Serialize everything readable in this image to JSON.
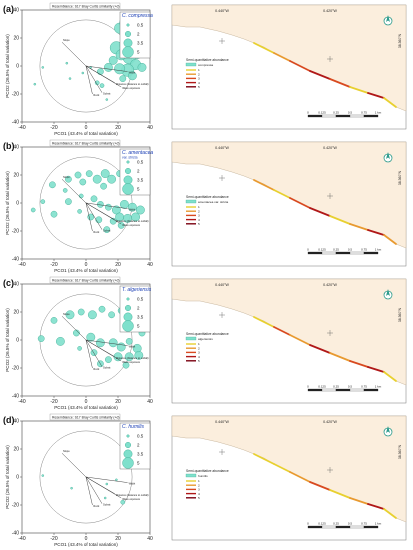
{
  "figure": {
    "panels": [
      {
        "letter": "(a)",
        "species": "C. compressa",
        "species_sub": "",
        "pco_title": "Resemblance: S17 Bray Curtis similarity (+d)",
        "map_legend_entry": "compressa",
        "bubble_color": "#7fe0cc",
        "bubbles": [
          [
            21,
            27,
            5
          ],
          [
            25,
            31,
            6
          ],
          [
            30,
            26,
            5
          ],
          [
            34,
            21,
            7
          ],
          [
            28,
            19,
            6
          ],
          [
            24,
            15,
            5
          ],
          [
            19,
            13,
            6
          ],
          [
            36,
            14,
            6
          ],
          [
            32,
            9,
            5
          ],
          [
            27,
            6,
            6
          ],
          [
            22,
            8,
            5
          ],
          [
            17,
            4,
            4
          ],
          [
            31,
            1,
            5
          ],
          [
            26,
            -3,
            6
          ],
          [
            21,
            -2,
            5
          ],
          [
            14,
            -1,
            4
          ],
          [
            9,
            -4,
            3
          ],
          [
            29,
            -7,
            4
          ],
          [
            23,
            -9,
            3
          ],
          [
            35,
            -1,
            4
          ],
          [
            7,
            -12,
            2
          ],
          [
            10,
            -14,
            2
          ],
          [
            3,
            -1,
            1
          ],
          [
            -10,
            -9,
            1
          ],
          [
            -27,
            -1,
            1
          ],
          [
            -32,
            -13,
            1
          ],
          [
            -12,
            2,
            1
          ],
          [
            13,
            -24,
            1
          ],
          [
            -2,
            -5,
            1
          ]
        ],
        "map_coast_colors": [
          "#e8d030",
          "#e89a30",
          "#d84a20",
          "#b01818",
          "#d84a20",
          "#e8d030",
          "#b01818"
        ]
      },
      {
        "letter": "(b)",
        "species": "C. amentacea",
        "species_sub": "var. stricta",
        "pco_title": "Resemblance: S17 Bray Curtis similarity (+d)",
        "map_legend_entry": "amentacea var. stricta",
        "bubble_color": "#7fe0cc",
        "bubbles": [
          [
            -21,
            13,
            3
          ],
          [
            -11,
            17,
            3
          ],
          [
            -5,
            20,
            3
          ],
          [
            -2,
            15,
            3
          ],
          [
            2,
            21,
            3
          ],
          [
            7,
            17,
            4
          ],
          [
            12,
            21,
            4
          ],
          [
            16,
            17,
            4
          ],
          [
            21,
            21,
            3
          ],
          [
            25,
            17,
            4
          ],
          [
            29,
            21,
            3
          ],
          [
            11,
            12,
            3
          ],
          [
            -13,
            9,
            2
          ],
          [
            -27,
            1,
            2
          ],
          [
            -33,
            -5,
            2
          ],
          [
            -20,
            -8,
            3
          ],
          [
            -11,
            1,
            3
          ],
          [
            -3,
            5,
            2
          ],
          [
            5,
            3,
            3
          ],
          [
            9,
            -1,
            3
          ],
          [
            14,
            -3,
            3
          ],
          [
            19,
            -5,
            4
          ],
          [
            24,
            -1,
            4
          ],
          [
            29,
            -3,
            4
          ],
          [
            34,
            -5,
            4
          ],
          [
            21,
            -10,
            4
          ],
          [
            26,
            -11,
            4
          ],
          [
            31,
            -10,
            4
          ],
          [
            17,
            -13,
            3
          ],
          [
            8,
            -12,
            3
          ],
          [
            3,
            -10,
            3
          ],
          [
            13,
            -19,
            3
          ],
          [
            22,
            -16,
            3
          ],
          [
            -4,
            -6,
            2
          ],
          [
            30,
            9,
            4
          ],
          [
            35,
            14,
            3
          ]
        ],
        "map_coast_colors": [
          "#e89a30",
          "#e8d030",
          "#d84a20",
          "#b01818",
          "#e8d030",
          "#e89a30",
          "#b01818"
        ]
      },
      {
        "letter": "(c)",
        "species": "T. algeriensis",
        "species_sub": "",
        "pco_title": "Resemblance: S17 Bray Curtis similarity (+d)",
        "map_legend_entry": "algeriensis",
        "bubble_color": "#7fe0cc",
        "bubbles": [
          [
            -20,
            14,
            3
          ],
          [
            -10,
            18,
            4
          ],
          [
            -3,
            20,
            3
          ],
          [
            4,
            18,
            4
          ],
          [
            10,
            22,
            3
          ],
          [
            16,
            18,
            3
          ],
          [
            22,
            21,
            3
          ],
          [
            27,
            18,
            3
          ],
          [
            32,
            13,
            3
          ],
          [
            -28,
            1,
            3
          ],
          [
            -16,
            -1,
            4
          ],
          [
            -6,
            5,
            3
          ],
          [
            3,
            2,
            4
          ],
          [
            9,
            -2,
            4
          ],
          [
            17,
            -2,
            4
          ],
          [
            22,
            -5,
            4
          ],
          [
            27,
            -1,
            3
          ],
          [
            32,
            -6,
            4
          ],
          [
            20,
            -12,
            4
          ],
          [
            27,
            -12,
            4
          ],
          [
            33,
            -11,
            4
          ],
          [
            14,
            -14,
            3
          ],
          [
            5,
            -9,
            3
          ],
          [
            -4,
            -6,
            2
          ],
          [
            9,
            -17,
            3
          ],
          [
            25,
            -18,
            3
          ],
          [
            35,
            5,
            3
          ]
        ],
        "map_coast_colors": [
          "#e8d030",
          "#d84a20",
          "#e89a30",
          "#b01818",
          "#e89a30",
          "#d84a20",
          "#b01818"
        ]
      },
      {
        "letter": "(d)",
        "species": "C. humilis",
        "species_sub": "",
        "pco_title": "Resemblance: S17 Bray Curtis similarity (+d)",
        "map_legend_entry": "humilis",
        "bubble_color": "#7fe0cc",
        "bubbles": [
          [
            27,
            29,
            4
          ],
          [
            33,
            27,
            3
          ],
          [
            30,
            23,
            2
          ],
          [
            24,
            21,
            1
          ],
          [
            36,
            31,
            2
          ],
          [
            19,
            -2,
            1
          ],
          [
            12,
            -15,
            1
          ],
          [
            -9,
            -8,
            1
          ],
          [
            -27,
            1,
            1
          ],
          [
            23,
            -18,
            2
          ],
          [
            13,
            -5,
            1
          ]
        ],
        "map_coast_colors": [
          "#e8d030",
          "#e8d030",
          "#e89a30",
          "#d84a20",
          "#e8d030",
          "#e89a30",
          "#b01818"
        ]
      }
    ],
    "pco_axes": {
      "xlabel": "PCO1 (43.4% of total variation)",
      "ylabel": "PCO2 (26.5% of total variation)",
      "xticks": [
        "-40",
        "-20",
        "0",
        "20",
        "40"
      ],
      "yticks": [
        "-40",
        "-20",
        "0",
        "20",
        "40"
      ],
      "vector_labels": [
        "Slope",
        "Distance (distance to outfall)",
        "Wave exposure",
        "Width",
        "Substr.",
        "Rock"
      ]
    },
    "legend_sizes": [
      "0.5",
      "2",
      "3.5",
      "5"
    ],
    "map": {
      "lon_labels": [
        "0.440°W",
        "0.420°W"
      ],
      "lat_label": "38.360°N",
      "legend_title": "Semi-quantitative abundance",
      "legend_classes": [
        "1",
        "2",
        "3",
        "4",
        "5"
      ],
      "legend_class_colors": [
        "#e8d030",
        "#e89a30",
        "#d84a20",
        "#b01818",
        "#7a0010"
      ],
      "scale_labels": [
        "0",
        "0.125",
        "0.25",
        "0.5",
        "0.75",
        "1 km"
      ]
    }
  },
  "chart_data": {
    "type": "scatter",
    "title": "Resemblance: S17 Bray Curtis similarity (+d)",
    "xlabel": "PCO1 (43.4% of total variation)",
    "ylabel": "PCO2 (26.5% of total variation)",
    "xlim": [
      -40,
      40
    ],
    "ylim": [
      -40,
      40
    ],
    "series": [
      {
        "name": "C. compressa"
      },
      {
        "name": "C. amentacea var. stricta"
      },
      {
        "name": "T. algeriensis"
      },
      {
        "name": "C. humilis"
      }
    ]
  }
}
